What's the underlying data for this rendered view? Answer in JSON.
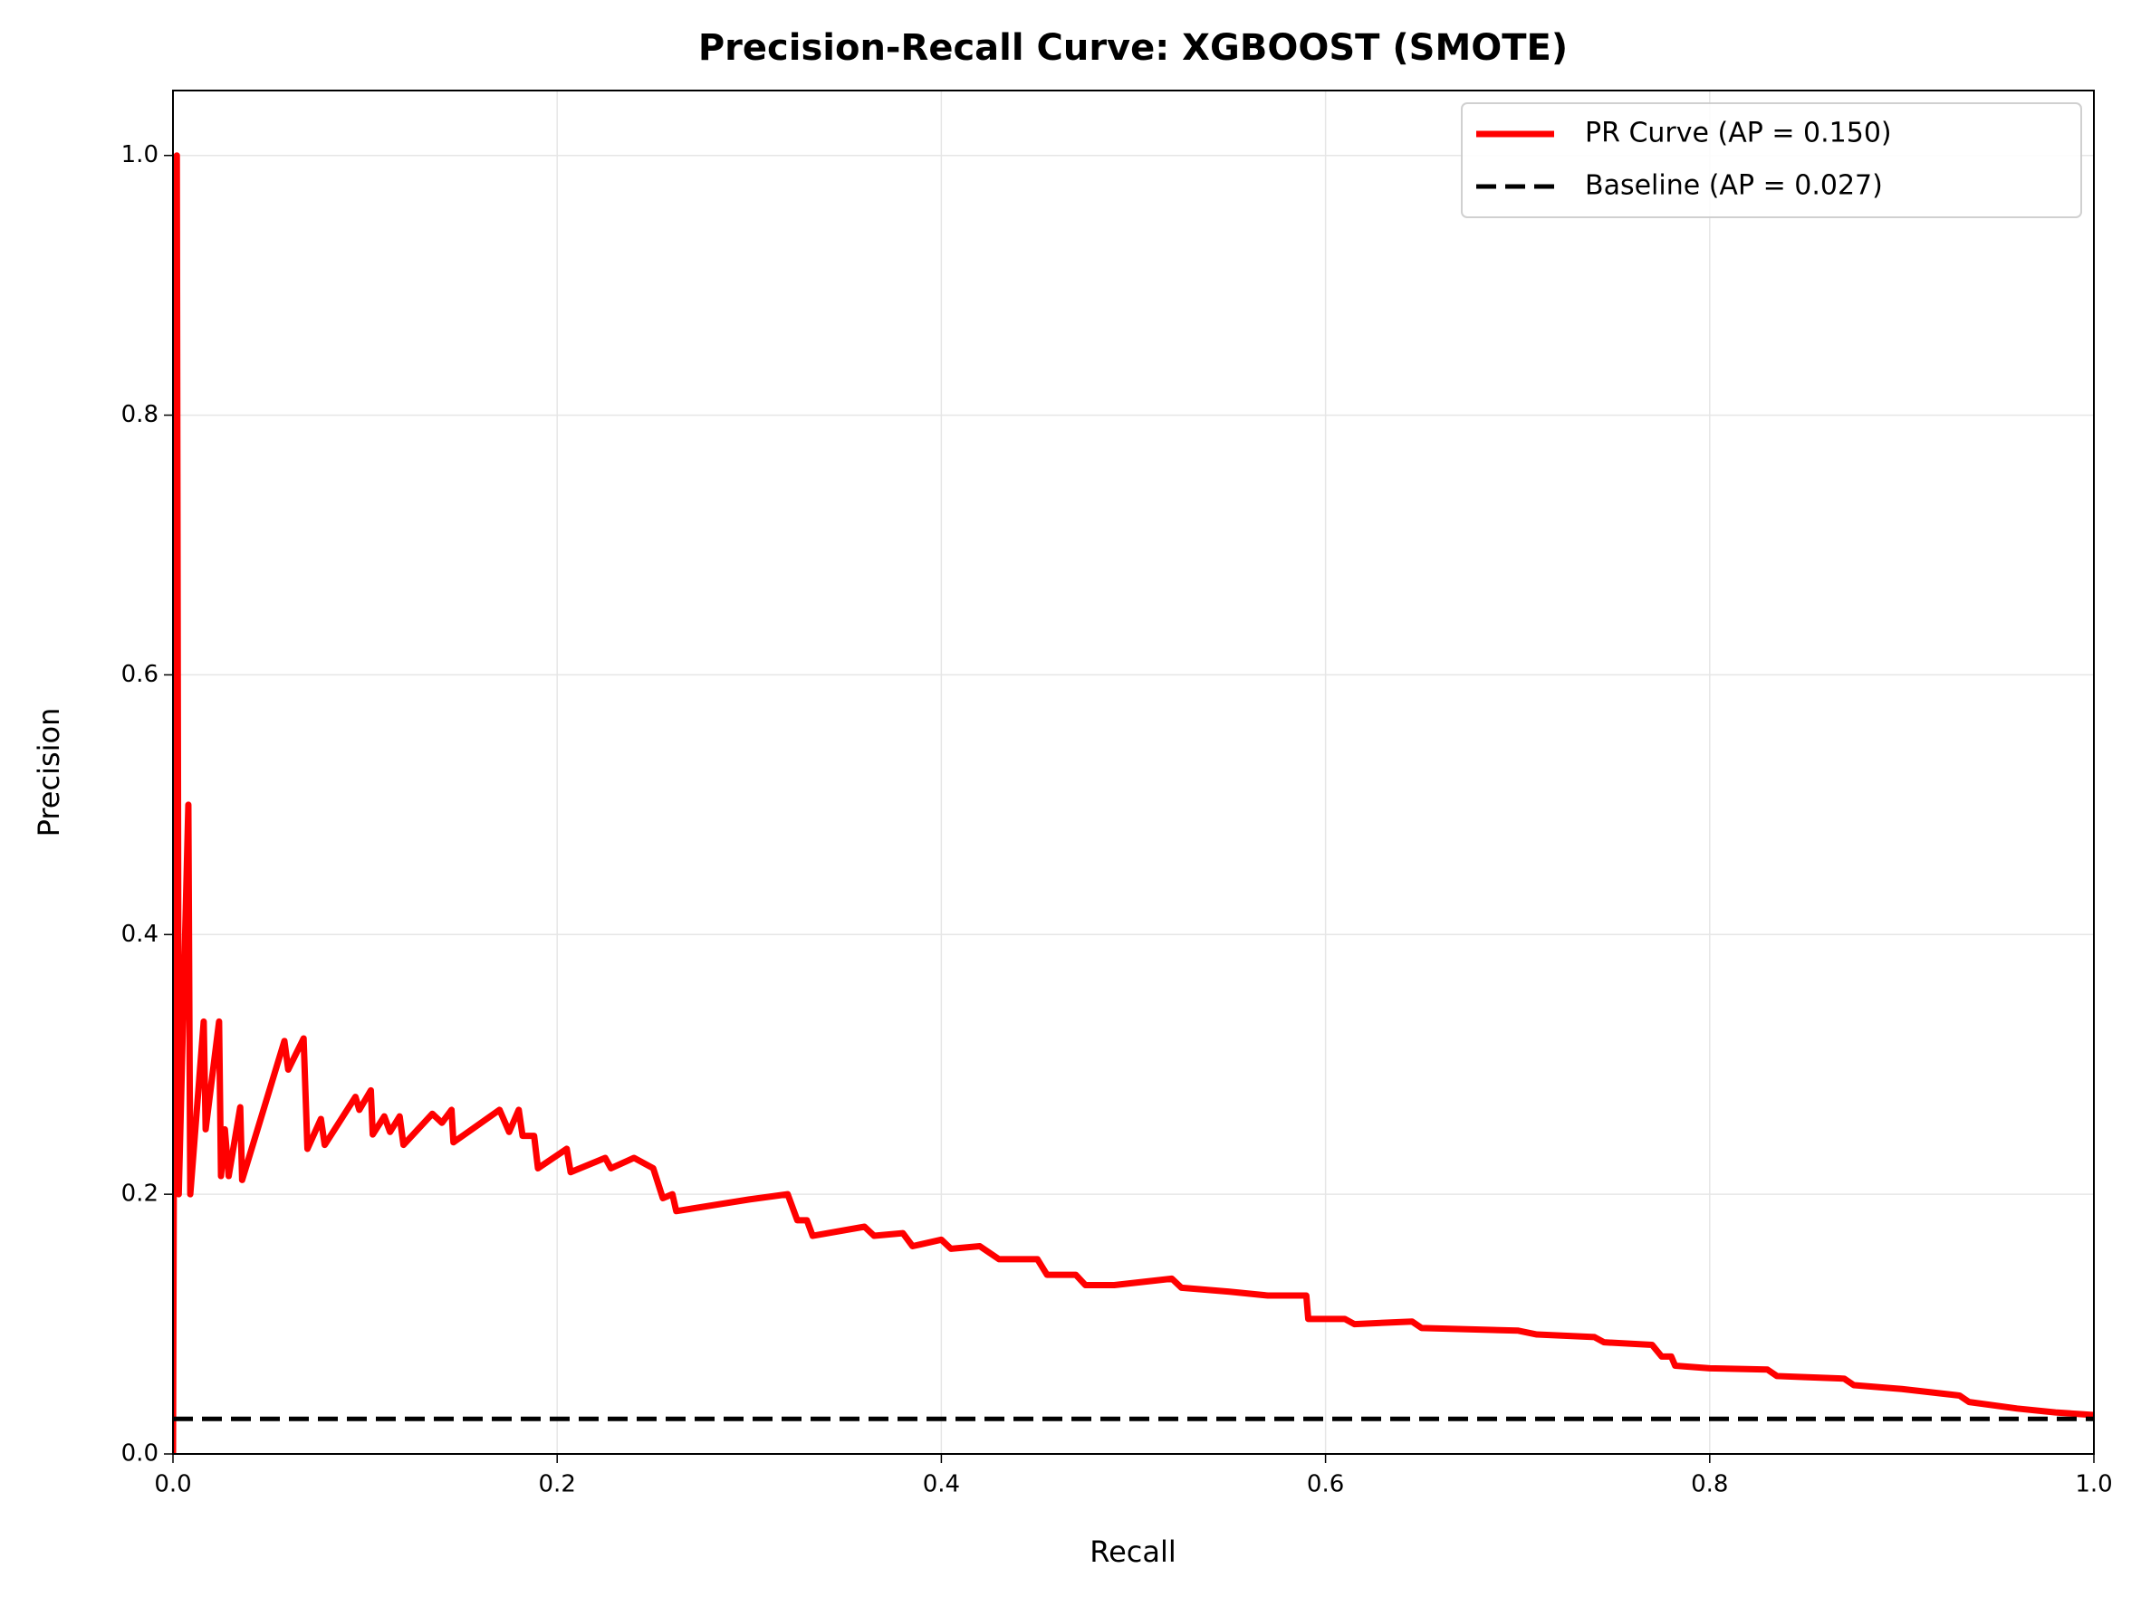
{
  "chart_data": {
    "type": "line",
    "title": "Precision-Recall Curve: XGBOOST (SMOTE)",
    "xlabel": "Recall",
    "ylabel": "Precision",
    "xlim": [
      0,
      1
    ],
    "ylim": [
      0,
      1.05
    ],
    "xticks": [
      {
        "value": 0,
        "label": "0.0"
      },
      0.2,
      0.4,
      0.6,
      0.8,
      {
        "value": 1,
        "label": "1.0"
      }
    ],
    "yticks": [
      {
        "value": 0,
        "label": "0.0"
      },
      0.2,
      0.4,
      0.6,
      0.8,
      {
        "value": 1,
        "label": "1.0"
      }
    ],
    "grid": true,
    "legend": "upper right",
    "series": [
      {
        "name": "PR Curve (AP = 0.150)",
        "color": "#ff0000",
        "dash": "solid",
        "x": [
          0,
          0.002,
          0.003,
          0.008,
          0.009,
          0.016,
          0.017,
          0.024,
          0.025,
          0.027,
          0.029,
          0.035,
          0.036,
          0.058,
          0.06,
          0.068,
          0.07,
          0.077,
          0.079,
          0.095,
          0.097,
          0.103,
          0.104,
          0.11,
          0.113,
          0.118,
          0.12,
          0.135,
          0.14,
          0.145,
          0.146,
          0.17,
          0.175,
          0.18,
          0.182,
          0.188,
          0.19,
          0.205,
          0.207,
          0.225,
          0.228,
          0.24,
          0.25,
          0.255,
          0.26,
          0.262,
          0.3,
          0.32,
          0.325,
          0.33,
          0.333,
          0.36,
          0.365,
          0.38,
          0.385,
          0.4,
          0.405,
          0.42,
          0.43,
          0.45,
          0.455,
          0.47,
          0.475,
          0.49,
          0.52,
          0.525,
          0.55,
          0.57,
          0.59,
          0.591,
          0.61,
          0.615,
          0.645,
          0.65,
          0.7,
          0.71,
          0.74,
          0.745,
          0.77,
          0.775,
          0.78,
          0.782,
          0.8,
          0.83,
          0.835,
          0.87,
          0.875,
          0.9,
          0.93,
          0.935,
          0.96,
          0.98,
          1.0
        ],
        "values": [
          0,
          1.0,
          0.2,
          0.5,
          0.2,
          0.333,
          0.25,
          0.333,
          0.214,
          0.25,
          0.214,
          0.267,
          0.211,
          0.318,
          0.296,
          0.32,
          0.235,
          0.258,
          0.238,
          0.275,
          0.265,
          0.28,
          0.246,
          0.26,
          0.248,
          0.26,
          0.238,
          0.262,
          0.255,
          0.265,
          0.24,
          0.265,
          0.248,
          0.265,
          0.245,
          0.245,
          0.22,
          0.235,
          0.217,
          0.228,
          0.22,
          0.228,
          0.22,
          0.197,
          0.2,
          0.187,
          0.196,
          0.2,
          0.18,
          0.18,
          0.168,
          0.175,
          0.168,
          0.17,
          0.16,
          0.165,
          0.158,
          0.16,
          0.15,
          0.15,
          0.138,
          0.138,
          0.13,
          0.13,
          0.135,
          0.128,
          0.125,
          0.122,
          0.122,
          0.104,
          0.104,
          0.1,
          0.102,
          0.097,
          0.095,
          0.092,
          0.09,
          0.086,
          0.084,
          0.075,
          0.075,
          0.068,
          0.066,
          0.065,
          0.06,
          0.058,
          0.053,
          0.05,
          0.045,
          0.04,
          0.035,
          0.032,
          0.03
        ]
      },
      {
        "name": "Baseline (AP = 0.027)",
        "color": "#000000",
        "dash": "dashed",
        "x": [
          0,
          1
        ],
        "values": [
          0.027,
          0.027
        ]
      }
    ]
  }
}
